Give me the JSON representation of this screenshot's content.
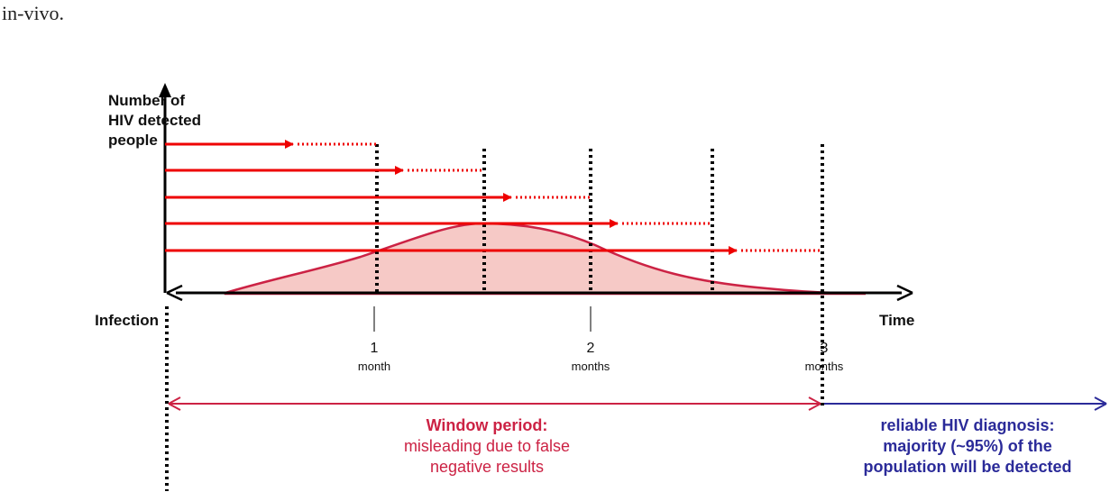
{
  "header": {
    "text": "in-vivo."
  },
  "diagram": {
    "y_axis_label": [
      "Number of",
      "HIV detected",
      "people"
    ],
    "origin_label": "Infection",
    "x_axis_label": "Time",
    "ticks": [
      {
        "number": "1",
        "unit": "month"
      },
      {
        "number": "2",
        "unit": "months"
      },
      {
        "number": "3",
        "unit": "months"
      }
    ],
    "window_period": {
      "title": "Window period:",
      "lines": [
        "misleading due to false",
        "negative results"
      ]
    },
    "reliable": {
      "lines": [
        "reliable HIV diagnosis:",
        "majority (~95%) of the",
        "population will be detected"
      ]
    }
  }
}
